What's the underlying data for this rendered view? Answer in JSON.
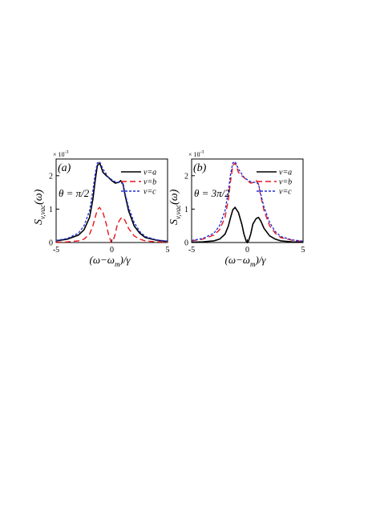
{
  "chart_data": [
    {
      "type": "line",
      "panel_label": "(a)",
      "theta_label": "θ = π/2",
      "exponent_label": "× 10",
      "exponent_power": "-3",
      "ylabel_s": "S",
      "ylabel_sub": "v,vac",
      "ylabel_arg": "(ω)",
      "xlabel": "(ω−ω",
      "xlabel_sub": "m",
      "xlabel_tail": ")/γ",
      "xlim": [
        -5,
        5
      ],
      "ylim": [
        0,
        2.5
      ],
      "xticks": [
        "-5",
        "0",
        "5"
      ],
      "yticks": [
        "0",
        "1",
        "2"
      ],
      "legend_position": "top-right",
      "series": [
        {
          "name": "v=a",
          "color": "#000000",
          "style": "solid",
          "x": [
            -5,
            -4,
            -3,
            -2.5,
            -2,
            -1.7,
            -1.5,
            -1.3,
            -1.1,
            -1,
            -0.8,
            -0.5,
            -0.3,
            0,
            0.3,
            0.6,
            0.8,
            1,
            1.2,
            1.5,
            2,
            2.5,
            3,
            4,
            5
          ],
          "y": [
            0.05,
            0.1,
            0.22,
            0.38,
            0.75,
            1.3,
            1.85,
            2.3,
            2.38,
            2.3,
            2.1,
            2.0,
            1.95,
            1.85,
            1.78,
            1.8,
            1.85,
            1.75,
            1.4,
            0.95,
            0.5,
            0.28,
            0.15,
            0.07,
            0.03
          ]
        },
        {
          "name": "v=b",
          "color": "#e8151b",
          "style": "dashed",
          "x": [
            -5,
            -4,
            -3,
            -2.5,
            -2,
            -1.7,
            -1.5,
            -1.3,
            -1.1,
            -0.8,
            -0.5,
            -0.3,
            -0.1,
            0,
            0.1,
            0.3,
            0.5,
            0.8,
            1,
            1.2,
            1.5,
            2,
            2.5,
            3,
            4,
            5
          ],
          "y": [
            0.01,
            0.02,
            0.05,
            0.1,
            0.25,
            0.5,
            0.75,
            0.98,
            1.05,
            0.9,
            0.55,
            0.25,
            0.04,
            0,
            0.04,
            0.25,
            0.55,
            0.72,
            0.75,
            0.65,
            0.42,
            0.2,
            0.1,
            0.05,
            0.02,
            0.01
          ]
        },
        {
          "name": "v=c",
          "color": "#2433d6",
          "style": "dotted",
          "x": [
            -5,
            -4,
            -3,
            -2.5,
            -2,
            -1.7,
            -1.5,
            -1.3,
            -1.1,
            -1,
            -0.8,
            -0.5,
            -0.3,
            0,
            0.3,
            0.6,
            0.8,
            1,
            1.2,
            1.5,
            2,
            2.5,
            3,
            4,
            5
          ],
          "y": [
            0.06,
            0.12,
            0.28,
            0.5,
            0.95,
            1.55,
            2.05,
            2.38,
            2.42,
            2.35,
            2.2,
            2.05,
            1.95,
            1.88,
            1.82,
            1.8,
            1.8,
            1.75,
            1.45,
            1.05,
            0.6,
            0.33,
            0.18,
            0.08,
            0.04
          ]
        }
      ]
    },
    {
      "type": "line",
      "panel_label": "(b)",
      "theta_label": "θ = 3π/2",
      "exponent_label": "× 10",
      "exponent_power": "-3",
      "ylabel_s": "S",
      "ylabel_sub": "v,vac",
      "ylabel_arg": "(ω)",
      "xlabel": "(ω−ω",
      "xlabel_sub": "m",
      "xlabel_tail": ")/γ",
      "xlim": [
        -5,
        5
      ],
      "ylim": [
        0,
        2.5
      ],
      "xticks": [
        "-5",
        "0",
        "5"
      ],
      "yticks": [
        "0",
        "1",
        "2"
      ],
      "legend_position": "top-right",
      "series": [
        {
          "name": "v=a",
          "color": "#000000",
          "style": "solid",
          "x": [
            -5,
            -4,
            -3,
            -2.5,
            -2,
            -1.7,
            -1.5,
            -1.3,
            -1.1,
            -0.8,
            -0.5,
            -0.3,
            -0.1,
            0,
            0.1,
            0.3,
            0.5,
            0.8,
            1,
            1.2,
            1.5,
            2,
            2.5,
            3,
            4,
            5
          ],
          "y": [
            0.01,
            0.02,
            0.05,
            0.1,
            0.25,
            0.5,
            0.75,
            0.98,
            1.05,
            0.9,
            0.55,
            0.25,
            0.04,
            0,
            0.04,
            0.25,
            0.55,
            0.72,
            0.75,
            0.65,
            0.42,
            0.2,
            0.1,
            0.05,
            0.02,
            0.01
          ]
        },
        {
          "name": "v=b",
          "color": "#e8151b",
          "style": "dashed",
          "x": [
            -5,
            -4,
            -3,
            -2.5,
            -2,
            -1.7,
            -1.5,
            -1.3,
            -1.1,
            -1,
            -0.8,
            -0.5,
            -0.3,
            0,
            0.3,
            0.6,
            0.8,
            1,
            1.2,
            1.5,
            2,
            2.5,
            3,
            4,
            5
          ],
          "y": [
            0.05,
            0.1,
            0.22,
            0.38,
            0.75,
            1.3,
            1.85,
            2.3,
            2.38,
            2.3,
            2.1,
            2.0,
            1.95,
            1.85,
            1.78,
            1.8,
            1.85,
            1.75,
            1.4,
            0.95,
            0.5,
            0.28,
            0.15,
            0.07,
            0.03
          ]
        },
        {
          "name": "v=c",
          "color": "#2433d6",
          "style": "dotted",
          "x": [
            -5,
            -4,
            -3,
            -2.5,
            -2,
            -1.7,
            -1.5,
            -1.3,
            -1.1,
            -1,
            -0.8,
            -0.5,
            -0.3,
            0,
            0.3,
            0.6,
            0.8,
            1,
            1.2,
            1.5,
            2,
            2.5,
            3,
            4,
            5
          ],
          "y": [
            0.06,
            0.12,
            0.28,
            0.5,
            0.95,
            1.55,
            2.05,
            2.38,
            2.42,
            2.35,
            2.2,
            2.05,
            1.95,
            1.88,
            1.82,
            1.8,
            1.8,
            1.75,
            1.45,
            1.05,
            0.6,
            0.33,
            0.18,
            0.08,
            0.04
          ]
        }
      ]
    }
  ]
}
